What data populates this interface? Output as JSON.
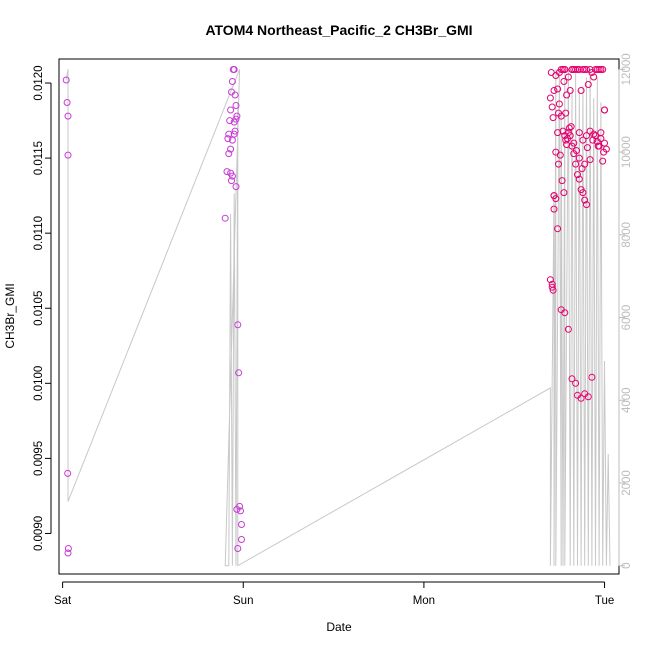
{
  "chart_data": {
    "type": "scatter",
    "title": "ATOM4 Northeast_Pacific_2 CH3Br_GMI",
    "xlabel": "Date",
    "ylabel": "CH3Br_GMI",
    "x_ticks": [
      "Sat",
      "Sun",
      "Mon",
      "Tue"
    ],
    "x_range": [
      -0.02,
      3.08
    ],
    "y_left_range": [
      0.00873,
      0.01216
    ],
    "y_left_ticks": [
      "0.0090",
      "0.0095",
      "0.0100",
      "0.0105",
      "0.0110",
      "0.0115",
      "0.0120"
    ],
    "y_right_range": [
      -200,
      12250
    ],
    "y_right_ticks": [
      "0",
      "2000",
      "4000",
      "6000",
      "8000",
      "10000",
      "12000"
    ],
    "colors": {
      "frame": "#000000",
      "line": "#c8c8c8",
      "right_axis": "#bdbdbd",
      "points_early": "#c83cd6",
      "points_late": "#e6006e"
    },
    "series": [
      {
        "values_x": [
          0.02,
          0.025,
          0.03,
          0.03,
          0.028,
          0.032,
          0.03,
          0.9,
          0.91,
          0.92,
          0.915,
          0.92,
          0.925,
          0.93,
          0.935,
          0.94,
          0.945,
          0.95,
          0.955,
          0.96,
          0.93,
          0.94,
          0.95,
          0.96,
          0.965,
          0.95,
          0.955,
          0.93,
          0.935,
          0.96,
          0.94,
          0.97,
          0.975,
          0.98,
          0.985,
          0.99,
          0.99,
          0.965,
          0.97
        ],
        "values_y": [
          0.01202,
          0.01187,
          0.01178,
          0.01152,
          0.0094,
          0.0089,
          0.00887,
          0.0111,
          0.01141,
          0.01153,
          0.01163,
          0.01166,
          0.01175,
          0.01182,
          0.01194,
          0.01201,
          0.01209,
          0.01209,
          0.01192,
          0.01185,
          0.01156,
          0.01162,
          0.01166,
          0.01176,
          0.01178,
          0.01174,
          0.01168,
          0.0114,
          0.01135,
          0.01131,
          0.01138,
          0.01039,
          0.01007,
          0.00918,
          0.00915,
          0.00906,
          0.00896,
          0.00916,
          0.0089
        ]
      },
      {
        "values_x": [
          2.7,
          2.71,
          2.71,
          2.715,
          2.72,
          2.72,
          2.73,
          2.74,
          2.745,
          2.75,
          2.76,
          2.77,
          2.775,
          2.78,
          2.78,
          2.785,
          2.79,
          2.8,
          2.81,
          2.82,
          2.82,
          2.83,
          2.84,
          2.85,
          2.86,
          2.87,
          2.88,
          2.89,
          2.9,
          2.91,
          2.92,
          2.93,
          2.94,
          2.95,
          2.96,
          2.97,
          2.98,
          2.99,
          3.0,
          3.0,
          3.01,
          2.86,
          2.88,
          2.9,
          2.92,
          2.94,
          2.96,
          2.98,
          3.0,
          2.74,
          2.76,
          2.78,
          2.8,
          2.82,
          2.84,
          2.85,
          2.87,
          2.89,
          2.91,
          2.93,
          2.95,
          2.97,
          2.99,
          2.72,
          2.73,
          2.745,
          2.755,
          2.765,
          2.775,
          2.785,
          2.795,
          2.805,
          2.815,
          2.83,
          2.845,
          2.86,
          2.875,
          2.89,
          2.905,
          2.92,
          2.935,
          2.95,
          2.965,
          2.98,
          2.995,
          2.7,
          2.705,
          2.71,
          2.715,
          2.72,
          2.73,
          2.74,
          2.75,
          2.76,
          2.77,
          2.78,
          2.79,
          2.8,
          2.81,
          2.82,
          2.83,
          2.84,
          2.85,
          2.86,
          2.87,
          2.88,
          2.89,
          2.9
        ],
        "values_y": [
          0.01069,
          0.01066,
          0.01064,
          0.01062,
          0.01125,
          0.01125,
          0.01154,
          0.01167,
          0.0118,
          0.01207,
          0.01209,
          0.01209,
          0.01201,
          0.01209,
          0.01209,
          0.0118,
          0.01192,
          0.01204,
          0.01195,
          0.01209,
          0.01209,
          0.01209,
          0.01209,
          0.01209,
          0.01209,
          0.01195,
          0.01209,
          0.01209,
          0.01209,
          0.01199,
          0.01209,
          0.01207,
          0.01204,
          0.01209,
          0.01209,
          0.01209,
          0.01209,
          0.01209,
          0.01182,
          0.01182,
          0.01156,
          0.01167,
          0.01162,
          0.01165,
          0.01168,
          0.01166,
          0.01161,
          0.01163,
          0.0116,
          0.01103,
          0.01049,
          0.01047,
          0.01036,
          0.01003,
          0.01,
          0.00992,
          0.0099,
          0.00993,
          0.00991,
          0.01004,
          0.01165,
          0.01158,
          0.01148,
          0.01116,
          0.01123,
          0.01146,
          0.01152,
          0.01135,
          0.01127,
          0.01162,
          0.01163,
          0.0117,
          0.01171,
          0.0116,
          0.01155,
          0.0115,
          0.01143,
          0.01146,
          0.01157,
          0.01149,
          0.01162,
          0.01165,
          0.01158,
          0.01167,
          0.01154,
          0.0119,
          0.01207,
          0.01184,
          0.01177,
          0.01195,
          0.01205,
          0.01196,
          0.01186,
          0.01178,
          0.01168,
          0.01165,
          0.01159,
          0.01167,
          0.01165,
          0.01158,
          0.01153,
          0.01146,
          0.01139,
          0.01136,
          0.01129,
          0.01127,
          0.01122,
          0.01119
        ]
      }
    ],
    "line_series": {
      "x": [
        0.02,
        0.03,
        0.03,
        0.03,
        0.98,
        0.98,
        0.9,
        0.92,
        0.93,
        0.94,
        0.95,
        0.96,
        0.97,
        0.97,
        2.7,
        2.7,
        2.72,
        2.72,
        2.73,
        2.73,
        2.75,
        2.76,
        2.76,
        2.77,
        2.78,
        2.78,
        2.8,
        2.81,
        2.82,
        2.83,
        2.84,
        2.85,
        2.86,
        2.87,
        2.88,
        2.89,
        2.9,
        2.91,
        2.92,
        2.93,
        2.94,
        2.95,
        2.96,
        2.97,
        2.98,
        2.99,
        3.0,
        3.01,
        3.02,
        3.03
      ],
      "y": [
        11750,
        12000,
        12000,
        1550,
        12000,
        12000,
        0,
        0,
        8500,
        0,
        9000,
        0,
        11200,
        0,
        4300,
        0,
        9000,
        0,
        12000,
        0,
        12000,
        0,
        11000,
        0,
        12000,
        0,
        12000,
        0,
        11500,
        0,
        11900,
        0,
        11500,
        0,
        11600,
        0,
        11800,
        0,
        12000,
        0,
        11300,
        0,
        11800,
        0,
        11200,
        0,
        4950,
        0,
        2700,
        0
      ]
    }
  }
}
